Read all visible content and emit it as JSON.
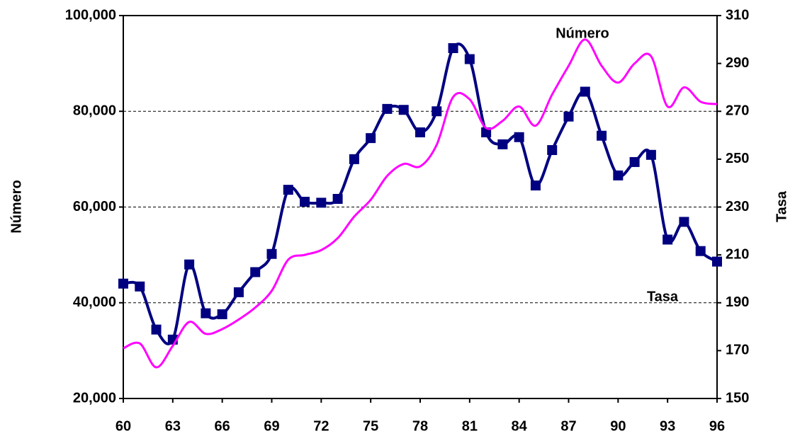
{
  "chart_data": {
    "type": "line",
    "y_label": "Número",
    "y2_label": "Tasa",
    "annotations": [
      "Número",
      "Tasa"
    ],
    "x": [
      60,
      61,
      62,
      63,
      64,
      65,
      66,
      67,
      68,
      69,
      70,
      71,
      72,
      73,
      74,
      75,
      76,
      77,
      78,
      79,
      80,
      81,
      82,
      83,
      84,
      85,
      86,
      87,
      88,
      89,
      90,
      91,
      92,
      93,
      94,
      95,
      96
    ],
    "series": [
      {
        "color": "#000080",
        "marker": "square",
        "values": [
          44000,
          43400,
          34400,
          32300,
          48000,
          37800,
          37600,
          42200,
          46400,
          50200,
          63600,
          61100,
          60900,
          61700,
          70000,
          74400,
          80500,
          80300,
          75600,
          80000,
          93200,
          90900,
          75600,
          73100,
          74600,
          64500,
          71900,
          78900,
          84100,
          74900,
          66600,
          69400,
          70900,
          53200,
          56900,
          50800,
          48600
        ]
      },
      {
        "color": "#ff00ff",
        "axis": "y2",
        "values": [
          171,
          173,
          163,
          172,
          182,
          177,
          179,
          183,
          188,
          195,
          208,
          210,
          212,
          217,
          226,
          233,
          243,
          248,
          247,
          256,
          276,
          275,
          263,
          266,
          272,
          264,
          277,
          289,
          300,
          289,
          282,
          290,
          293,
          272,
          280,
          274,
          273
        ]
      }
    ],
    "xlim": [
      60,
      96
    ],
    "xticks": [
      60,
      63,
      66,
      69,
      72,
      75,
      78,
      81,
      84,
      87,
      90,
      93,
      96
    ],
    "ylim": [
      20000,
      100000
    ],
    "yticks": [
      {
        "value": 20000,
        "label": "20,000"
      },
      {
        "value": 40000,
        "label": "40,000"
      },
      {
        "value": 60000,
        "label": "60,000"
      },
      {
        "value": 80000,
        "label": "80,000"
      },
      {
        "value": 100000,
        "label": "100,000"
      }
    ],
    "y2lim": [
      150,
      310
    ],
    "y2ticks": [
      150,
      170,
      190,
      210,
      230,
      250,
      270,
      290,
      310
    ],
    "grid": true
  }
}
